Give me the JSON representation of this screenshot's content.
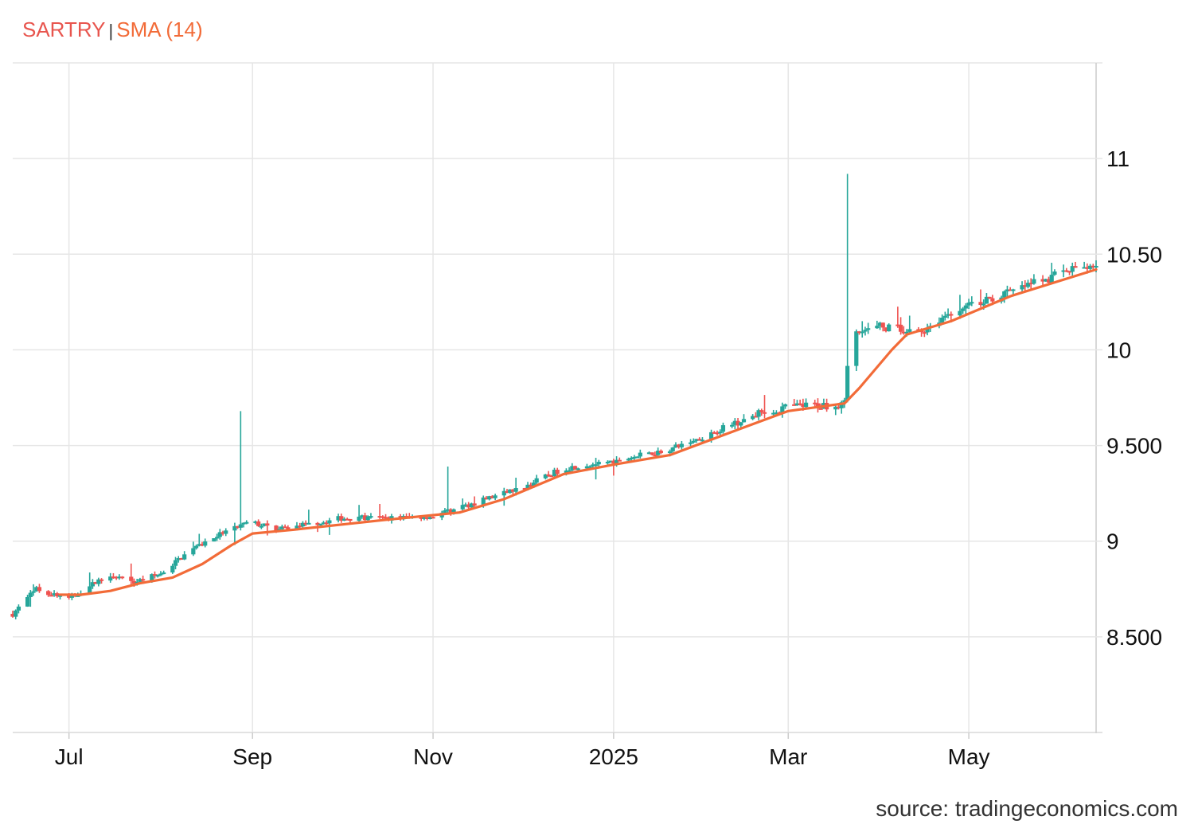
{
  "legend": {
    "symbol": "SARTRY",
    "separator": "|",
    "indicator": "SMA (14)"
  },
  "source": "source: tradingeconomics.com",
  "colors": {
    "up": "#26a69a",
    "down": "#ef5350",
    "sma": "#f26b38",
    "grid": "#e6e6e6"
  },
  "chart_data": {
    "type": "candlestick",
    "x_axis": {
      "type": "date",
      "ticks": [
        "Jul",
        "Sep",
        "Nov",
        "2025",
        "Mar",
        "May"
      ],
      "tick_dates": [
        "2024-07-01",
        "2024-09-01",
        "2024-11-01",
        "2025-01-01",
        "2025-03-01",
        "2025-05-01"
      ],
      "range": [
        "2024-06-12",
        "2025-06-13"
      ]
    },
    "y_axis": {
      "ticks": [
        "8.500",
        "9",
        "9.500",
        "10",
        "10.50",
        "11"
      ],
      "tick_values": [
        8.5,
        9.0,
        9.5,
        10.0,
        10.5,
        11.0
      ],
      "range": [
        8.0,
        11.5
      ],
      "position": "right"
    },
    "grid": true,
    "series": [
      {
        "name": "SARTRY",
        "kind": "ohlc",
        "anchors": [
          [
            "2024-06-12",
            8.62
          ],
          [
            "2024-06-20",
            8.75
          ],
          [
            "2024-07-01",
            8.7
          ],
          [
            "2024-07-15",
            8.83
          ],
          [
            "2024-07-22",
            8.78
          ],
          [
            "2024-08-01",
            8.83
          ],
          [
            "2024-08-10",
            8.94
          ],
          [
            "2024-08-20",
            9.03
          ],
          [
            "2024-08-31",
            9.1
          ],
          [
            "2024-09-10",
            9.06
          ],
          [
            "2024-10-01",
            9.12
          ],
          [
            "2024-10-15",
            9.12
          ],
          [
            "2024-11-01",
            9.13
          ],
          [
            "2024-11-15",
            9.2
          ],
          [
            "2024-12-01",
            9.28
          ],
          [
            "2024-12-15",
            9.38
          ],
          [
            "2025-01-01",
            9.42
          ],
          [
            "2025-01-20",
            9.48
          ],
          [
            "2025-02-01",
            9.55
          ],
          [
            "2025-02-15",
            9.65
          ],
          [
            "2025-03-01",
            9.7
          ],
          [
            "2025-03-20",
            9.72
          ],
          [
            "2025-03-22",
            10.08
          ],
          [
            "2025-04-01",
            10.12
          ],
          [
            "2025-04-15",
            10.1
          ],
          [
            "2025-04-25",
            10.2
          ],
          [
            "2025-05-15",
            10.3
          ],
          [
            "2025-06-01",
            10.4
          ],
          [
            "2025-06-13",
            10.45
          ]
        ],
        "notable_wicks": [
          {
            "date": "2024-08-28",
            "high": 9.68
          },
          {
            "date": "2024-11-06",
            "high": 9.39
          },
          {
            "date": "2025-03-21",
            "high": 10.92
          }
        ]
      },
      {
        "name": "SMA (14)",
        "kind": "line",
        "points": [
          [
            "2024-06-28",
            8.72
          ],
          [
            "2024-07-05",
            8.72
          ],
          [
            "2024-07-15",
            8.74
          ],
          [
            "2024-07-25",
            8.78
          ],
          [
            "2024-08-05",
            8.81
          ],
          [
            "2024-08-15",
            8.88
          ],
          [
            "2024-08-25",
            8.98
          ],
          [
            "2024-09-01",
            9.04
          ],
          [
            "2024-09-15",
            9.06
          ],
          [
            "2024-10-15",
            9.11
          ],
          [
            "2024-11-10",
            9.15
          ],
          [
            "2024-11-25",
            9.22
          ],
          [
            "2024-12-15",
            9.35
          ],
          [
            "2025-01-01",
            9.4
          ],
          [
            "2025-01-20",
            9.45
          ],
          [
            "2025-02-15",
            9.6
          ],
          [
            "2025-03-01",
            9.68
          ],
          [
            "2025-03-20",
            9.72
          ],
          [
            "2025-03-25",
            9.8
          ],
          [
            "2025-04-05",
            10.0
          ],
          [
            "2025-04-10",
            10.08
          ],
          [
            "2025-04-25",
            10.15
          ],
          [
            "2025-05-15",
            10.28
          ],
          [
            "2025-06-13",
            10.42
          ]
        ]
      }
    ]
  }
}
